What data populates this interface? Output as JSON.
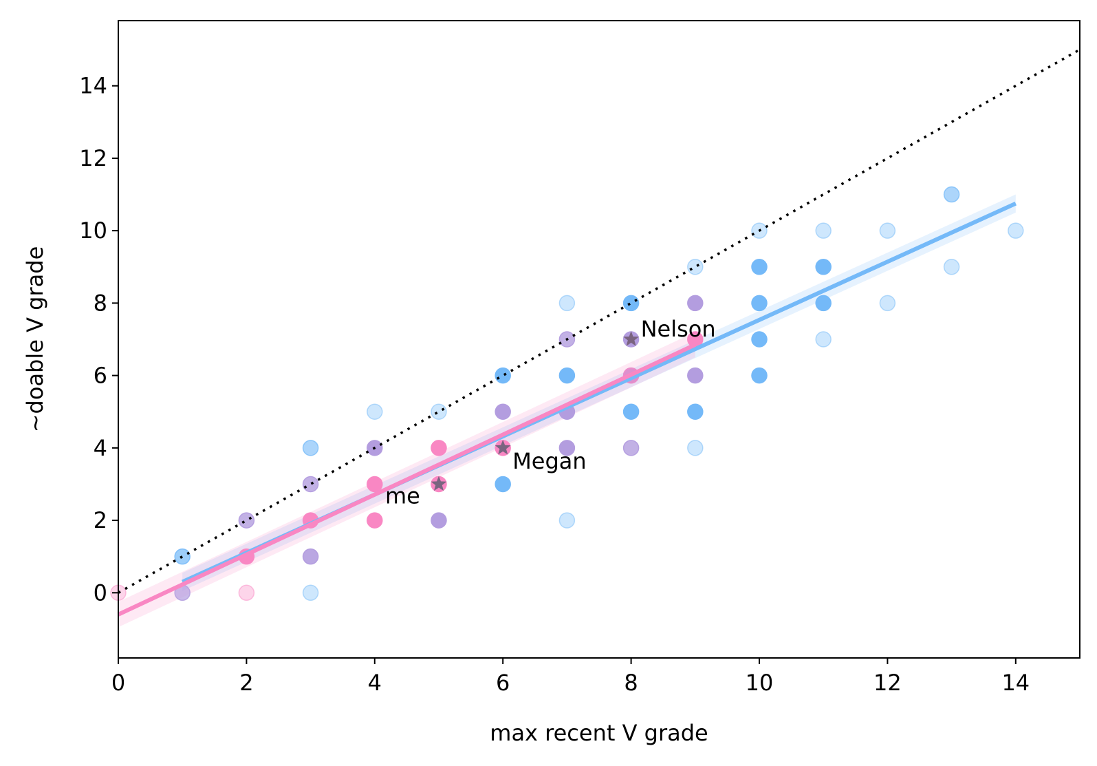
{
  "chart_data": {
    "type": "scatter",
    "title": "",
    "xlabel": "max recent V grade",
    "ylabel": "~doable V grade",
    "xlim": [
      0,
      15
    ],
    "ylim": [
      -1.8,
      15.8
    ],
    "xticks": [
      0,
      2,
      4,
      6,
      8,
      10,
      12,
      14
    ],
    "yticks": [
      0,
      2,
      4,
      6,
      8,
      10,
      12,
      14
    ],
    "grid": false,
    "legend": "none",
    "colors": {
      "blue": "#74b9f8",
      "pink": "#f987c3",
      "purple": "#b39ddf",
      "star": "#7a6480",
      "identity_line": "#000000"
    },
    "series": [
      {
        "group": "blue",
        "points": [
          [
            1,
            1,
            0.7
          ],
          [
            3,
            4,
            0.6
          ],
          [
            3,
            0,
            0.35
          ],
          [
            4,
            5,
            0.35
          ],
          [
            5,
            5,
            0.35
          ],
          [
            6,
            6,
            1
          ],
          [
            6,
            3,
            1
          ],
          [
            7,
            8,
            0.35
          ],
          [
            7,
            6,
            1
          ],
          [
            7,
            2,
            0.35
          ],
          [
            8,
            8,
            1
          ],
          [
            8,
            5,
            1
          ],
          [
            9,
            9,
            0.35
          ],
          [
            9,
            5,
            1
          ],
          [
            9,
            4,
            0.35
          ],
          [
            10,
            10,
            0.35
          ],
          [
            10,
            9,
            1
          ],
          [
            10,
            8,
            1
          ],
          [
            10,
            7,
            1
          ],
          [
            10,
            6,
            1
          ],
          [
            11,
            10,
            0.35
          ],
          [
            11,
            9,
            1
          ],
          [
            11,
            8,
            1
          ],
          [
            11,
            7,
            0.35
          ],
          [
            12,
            10,
            0.35
          ],
          [
            12,
            8,
            0.35
          ],
          [
            13,
            11,
            0.6
          ],
          [
            13,
            9,
            0.35
          ],
          [
            14,
            10,
            0.35
          ]
        ]
      },
      {
        "group": "purple",
        "points": [
          [
            1,
            0,
            0.7
          ],
          [
            2,
            2,
            0.8
          ],
          [
            3,
            3,
            0.8
          ],
          [
            3,
            1,
            0.9
          ],
          [
            4,
            4,
            1
          ],
          [
            5,
            2,
            1
          ],
          [
            6,
            5,
            1
          ],
          [
            7,
            7,
            0.8
          ],
          [
            7,
            5,
            1
          ],
          [
            7,
            4,
            1
          ],
          [
            8,
            7,
            1
          ],
          [
            8,
            6,
            1
          ],
          [
            8,
            4,
            0.8
          ],
          [
            9,
            8,
            1
          ],
          [
            9,
            6,
            1
          ]
        ]
      },
      {
        "group": "pink",
        "points": [
          [
            0,
            0,
            0.35
          ],
          [
            2,
            1,
            1
          ],
          [
            2,
            0,
            0.35
          ],
          [
            3,
            2,
            1
          ],
          [
            4,
            3,
            1
          ],
          [
            4,
            2,
            1
          ],
          [
            5,
            4,
            1
          ],
          [
            5,
            3,
            1
          ],
          [
            6,
            4,
            1
          ],
          [
            8,
            6,
            0.6
          ],
          [
            9,
            7,
            1
          ]
        ]
      }
    ],
    "fit_lines": [
      {
        "group": "blue",
        "x": [
          1,
          14
        ],
        "y": [
          0.3,
          10.75
        ],
        "ci": 0.25
      },
      {
        "group": "pink",
        "x": [
          0,
          9
        ],
        "y": [
          -0.6,
          6.85
        ],
        "ci": 0.35
      }
    ],
    "identity_line": {
      "x": [
        0,
        15
      ],
      "y": [
        0,
        15
      ]
    },
    "annotations": [
      {
        "label": "me",
        "x": 5,
        "y": 3
      },
      {
        "label": "Megan",
        "x": 6,
        "y": 4
      },
      {
        "label": "Nelson",
        "x": 8,
        "y": 7
      }
    ]
  }
}
